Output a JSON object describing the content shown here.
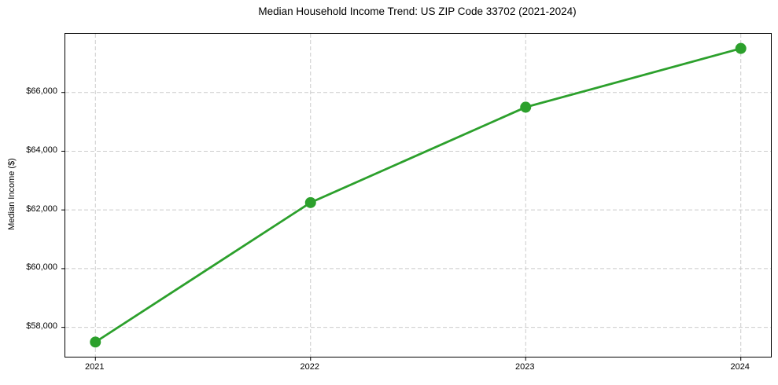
{
  "figure": {
    "title": "Median Household Income Trend: US ZIP Code 33702 (2021-2024)"
  },
  "chart_data": {
    "type": "line",
    "title": "Median Household Income Trend: US ZIP Code 33702 (2021-2024)",
    "xlabel": "",
    "ylabel": "Median Income ($)",
    "x": [
      2021,
      2022,
      2023,
      2024
    ],
    "xtick_labels": [
      "2021",
      "2022",
      "2023",
      "2024"
    ],
    "series": [
      {
        "name": "Median Income",
        "values": [
          57500,
          62250,
          65500,
          67500
        ]
      }
    ],
    "yticks": [
      58000,
      60000,
      62000,
      64000,
      66000
    ],
    "ytick_labels": [
      "$58,000",
      "$60,000",
      "$62,000",
      "$64,000",
      "$66,000"
    ],
    "xlim": [
      2020.86,
      2024.14
    ],
    "ylim": [
      57000,
      68000
    ],
    "grid": true,
    "grid_style": "dashed",
    "legend_position": "none",
    "line_color": "#2ca02c",
    "marker": "circle",
    "marker_radius": 7,
    "line_width": 2.8,
    "background": "#ffffff"
  }
}
